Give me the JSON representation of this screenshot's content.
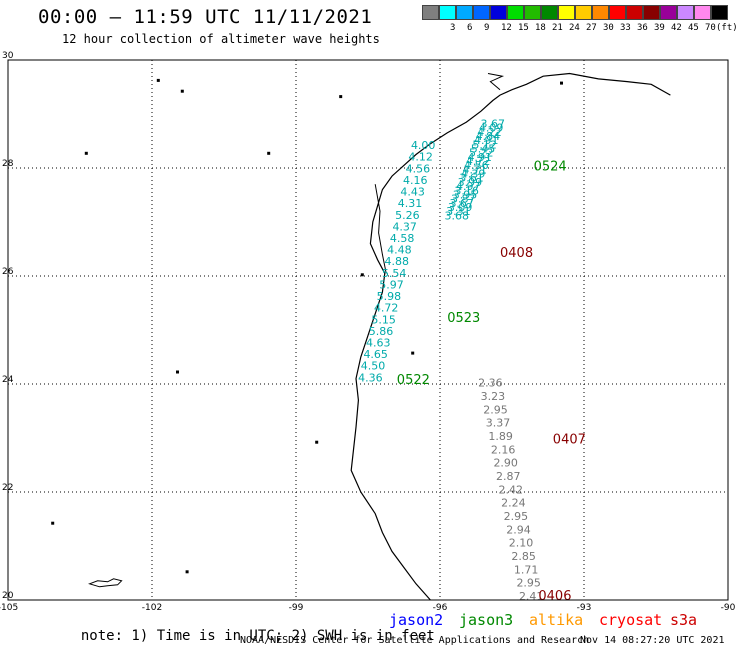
{
  "title": "00:00 – 11:59 UTC 11/11/2021",
  "subtitle": "12 hour collection of altimeter wave heights",
  "legend": {
    "unit": "(ft)",
    "items": [
      {
        "label": "",
        "color": "#7f7f7f"
      },
      {
        "label": "3",
        "color": "#00ffff"
      },
      {
        "label": "6",
        "color": "#00aaff"
      },
      {
        "label": "9",
        "color": "#0066ff"
      },
      {
        "label": "12",
        "color": "#0000dd"
      },
      {
        "label": "15",
        "color": "#00dd00"
      },
      {
        "label": "18",
        "color": "#22bb00"
      },
      {
        "label": "21",
        "color": "#008800"
      },
      {
        "label": "24",
        "color": "#ffff00"
      },
      {
        "label": "27",
        "color": "#ffcc00"
      },
      {
        "label": "30",
        "color": "#ff8800"
      },
      {
        "label": "33",
        "color": "#ff0000"
      },
      {
        "label": "36",
        "color": "#cc0000"
      },
      {
        "label": "39",
        "color": "#880000"
      },
      {
        "label": "42",
        "color": "#990099"
      },
      {
        "label": "45",
        "color": "#cc88ff"
      },
      {
        "label": "70",
        "color": "#ff88ee"
      },
      {
        "label": "",
        "color": "#000000"
      }
    ]
  },
  "map": {
    "lon_range": [
      -105,
      -90
    ],
    "lat_range": [
      20,
      30
    ],
    "lon_ticks": [
      "-105",
      "-102",
      "-99",
      "-96",
      "-93",
      "-90"
    ],
    "lat_ticks": [
      "30",
      "28",
      "26",
      "24",
      "22",
      "20"
    ]
  },
  "tracks": [
    {
      "pass": "0524",
      "satellite": "jason3",
      "color": "#00aaaa",
      "label_color": "#008800",
      "start_lon": -94.9,
      "start_lat": 28.75,
      "end_lon": -95.65,
      "end_lat": 27.05,
      "values": [
        "3.67",
        "4.09",
        "4.22",
        "4.84",
        "4.91",
        "5.12",
        "5.45",
        "5.22",
        "4.91",
        "4.72",
        "4.56",
        "4.71",
        "4.39",
        "3.61",
        "3.99",
        "4.97",
        "3.16",
        "3.95",
        "3.87",
        "3.67",
        "3.09",
        "3.31",
        "3.68"
      ]
    },
    {
      "pass": "0522",
      "satellite": "jason3",
      "color": "#00aaaa",
      "label_color": "#008800",
      "start_lon": -96.35,
      "start_lat": 28.35,
      "end_lon": -97.45,
      "end_lat": 24.05,
      "values": [
        "4.00",
        "4.12",
        "4.56",
        "4.16",
        "4.43",
        "4.31",
        "5.26",
        "4.37",
        "4.58",
        "4.48",
        "4.88",
        "5.54",
        "5.97",
        "5.98",
        "4.72",
        "5.15",
        "5.86",
        "4.63",
        "4.65",
        "4.50",
        "4.36"
      ]
    },
    {
      "pass": "0407",
      "satellite": "cryosat",
      "color": "#777777",
      "label_color": "#880000",
      "start_lon": -94.95,
      "start_lat": 23.95,
      "end_lon": -94.1,
      "end_lat": 20.0,
      "values": [
        "2.36",
        "3.23",
        "2.95",
        "3.37",
        "1.89",
        "2.16",
        "2.90",
        "2.87",
        "2.42",
        "2.24",
        "2.95",
        "2.94",
        "2.10",
        "2.85",
        "1.71",
        "2.95",
        "2.41"
      ]
    }
  ],
  "pass_labels": [
    {
      "text": "0524",
      "color": "#008800",
      "lon": -94.05,
      "lat": 27.95
    },
    {
      "text": "0408",
      "color": "#880000",
      "lon": -94.75,
      "lat": 26.35
    },
    {
      "text": "0523",
      "color": "#008800",
      "lon": -95.85,
      "lat": 25.15
    },
    {
      "text": "0522",
      "color": "#008800",
      "lon": -96.9,
      "lat": 24.0
    },
    {
      "text": "0407",
      "color": "#880000",
      "lon": -93.65,
      "lat": 22.9
    },
    {
      "text": "0406",
      "color": "#880000",
      "lon": -93.95,
      "lat": 20.0
    }
  ],
  "footer": {
    "note": "note: 1) Time is in UTC; 2) SWH is in feet",
    "satellites": [
      {
        "name": "jason2",
        "color": "#0000ff"
      },
      {
        "name": "jason3",
        "color": "#008800"
      },
      {
        "name": "altika",
        "color": "#ff9900"
      },
      {
        "name": "cryosat",
        "color": "#ff0000"
      },
      {
        "name": "s3a",
        "color": "#cc0000"
      }
    ],
    "credit": "NOAA/NESDIS Center for Satellite Applications and Research",
    "timestamp": "Nov 14 08:27:20 UTC 2021"
  }
}
